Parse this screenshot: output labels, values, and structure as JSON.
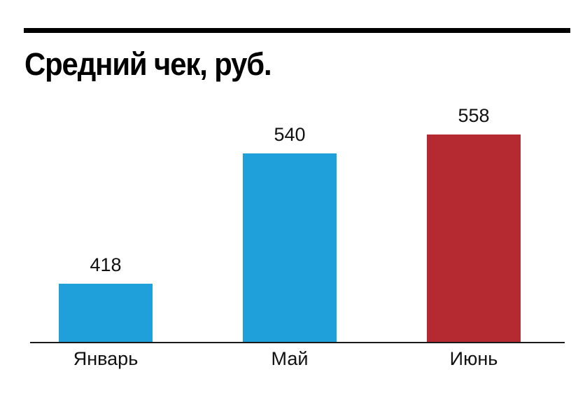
{
  "chart_data": {
    "type": "bar",
    "title": "Средний чек, руб.",
    "categories": [
      "Январь",
      "Май",
      "Июнь"
    ],
    "values": [
      418,
      540,
      558
    ],
    "colors": [
      "#1fa0db",
      "#1fa0db",
      "#b52930"
    ],
    "xlabel": "",
    "ylabel": "",
    "grid": false,
    "legend": null,
    "data_labels": [
      "418",
      "540",
      "558"
    ]
  },
  "colors": {
    "bar_default": "#1fa0db",
    "bar_highlight": "#b52930",
    "rule": "#000000",
    "axis": "#1a1a1a"
  }
}
